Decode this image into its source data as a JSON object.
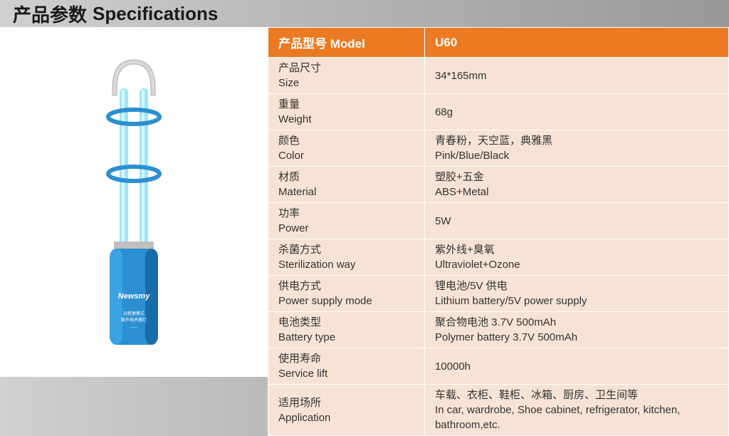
{
  "header": {
    "title_cn": "产品参数",
    "title_en": "Specifications"
  },
  "table": {
    "header_label": "产品型号   Model",
    "header_value": "U60",
    "header_bg": "#ec7a23",
    "header_color": "#ffffff",
    "row_bg": "#f6e3d5",
    "row_color": "#333333",
    "border_color": "#ffffff",
    "rows": [
      {
        "label_cn": "产品尺寸",
        "label_en": "Size",
        "value_cn": "",
        "value_en": "34*165mm"
      },
      {
        "label_cn": "重量",
        "label_en": "Weight",
        "value_cn": "",
        "value_en": "68g"
      },
      {
        "label_cn": "颜色",
        "label_en": "Color",
        "value_cn": "青春粉，天空蓝，典雅黑",
        "value_en": "Pink/Blue/Black"
      },
      {
        "label_cn": "材质",
        "label_en": "Material",
        "value_cn": "塑胶+五金",
        "value_en": "ABS+Metal"
      },
      {
        "label_cn": "功率",
        "label_en": "Power",
        "value_cn": "",
        "value_en": "5W"
      },
      {
        "label_cn": "杀菌方式",
        "label_en": "Sterilization way",
        "value_cn": "紫外线+臭氧",
        "value_en": "Ultraviolet+Ozone"
      },
      {
        "label_cn": "供电方式",
        "label_en": "Power supply mode",
        "value_cn": "锂电池/5V 供电",
        "value_en": "Lithium battery/5V power supply"
      },
      {
        "label_cn": "电池类型",
        "label_en": "Battery type",
        "value_cn": "聚合物电池 3.7V 500mAh",
        "value_en": "Polymer battery 3.7V 500mAh"
      },
      {
        "label_cn": "使用寿命",
        "label_en": "Service lift",
        "value_cn": "",
        "value_en": "10000h"
      },
      {
        "label_cn": "适用场所",
        "label_en": "Application",
        "value_cn": "车载、衣柜、鞋柜、冰箱、厨房、卫生间等",
        "value_en": "In car, wardrobe, Shoe cabinet, refrigerator, kitchen, bathroom,etc."
      }
    ]
  },
  "product_image": {
    "base_color": "#2b8fd1",
    "base_dark": "#1a6ca8",
    "tube_color": "#9de6f8",
    "tube_highlight": "#d8f6fc",
    "ring_color": "#2b8fd1",
    "brand": "Newsmy",
    "label_line1": "远程便携式",
    "label_line2": "紫外线杀菌灯"
  }
}
